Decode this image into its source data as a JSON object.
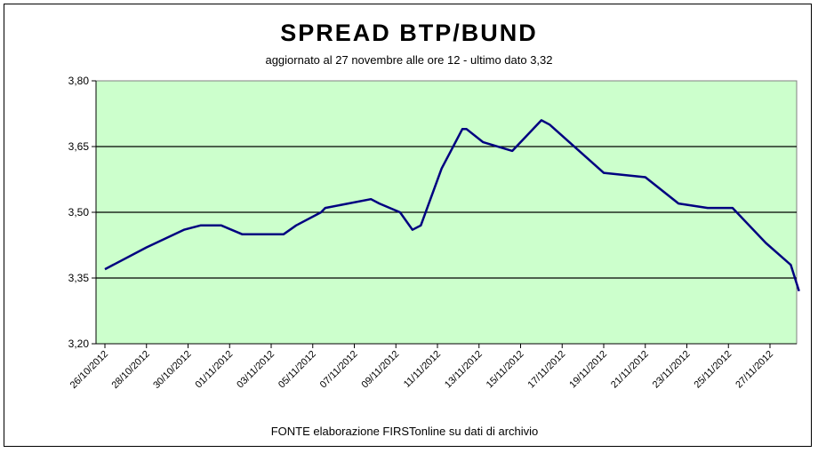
{
  "chart_data": {
    "type": "line",
    "title": "SPREAD  BTP/BUND",
    "subtitle": "aggiornato al 27 novembre alle ore 12 - ultimo dato 3,32",
    "source_note": "FONTE elaborazione FIRSTonline su dati di archivio",
    "xlabel": "",
    "ylabel": "",
    "ylim": [
      3.2,
      3.8
    ],
    "yticks": [
      "3,20",
      "3,35",
      "3,50",
      "3,65",
      "3,80"
    ],
    "grid": true,
    "plot_bg": "#ccffcc",
    "line_color": "#000080",
    "categories": [
      "26/10/2012",
      "28/10/2012",
      "30/10/2012",
      "01/11/2012",
      "03/11/2012",
      "05/11/2012",
      "07/11/2012",
      "09/11/2012",
      "11/11/2012",
      "13/11/2012",
      "15/11/2012",
      "17/11/2012",
      "19/11/2012",
      "21/11/2012",
      "23/11/2012",
      "25/11/2012",
      "27/11/2012"
    ],
    "series": [
      {
        "x": [
          0,
          1,
          1.9,
          2.3,
          2.8,
          3.3,
          4.3,
          4.6,
          5.2,
          5.3,
          6.4,
          6.6,
          7.1,
          7.4,
          7.6,
          8.1,
          8.6,
          8.7,
          9.1,
          9.8,
          10.5,
          10.7,
          12.0,
          13.0,
          13.8,
          14.5,
          15.1,
          15.9,
          16.5,
          16.7
        ],
        "y": [
          3.37,
          3.42,
          3.46,
          3.47,
          3.47,
          3.45,
          3.45,
          3.47,
          3.5,
          3.51,
          3.53,
          3.52,
          3.5,
          3.46,
          3.47,
          3.6,
          3.69,
          3.69,
          3.66,
          3.64,
          3.71,
          3.7,
          3.59,
          3.58,
          3.52,
          3.51,
          3.51,
          3.43,
          3.38,
          3.32
        ]
      }
    ]
  }
}
